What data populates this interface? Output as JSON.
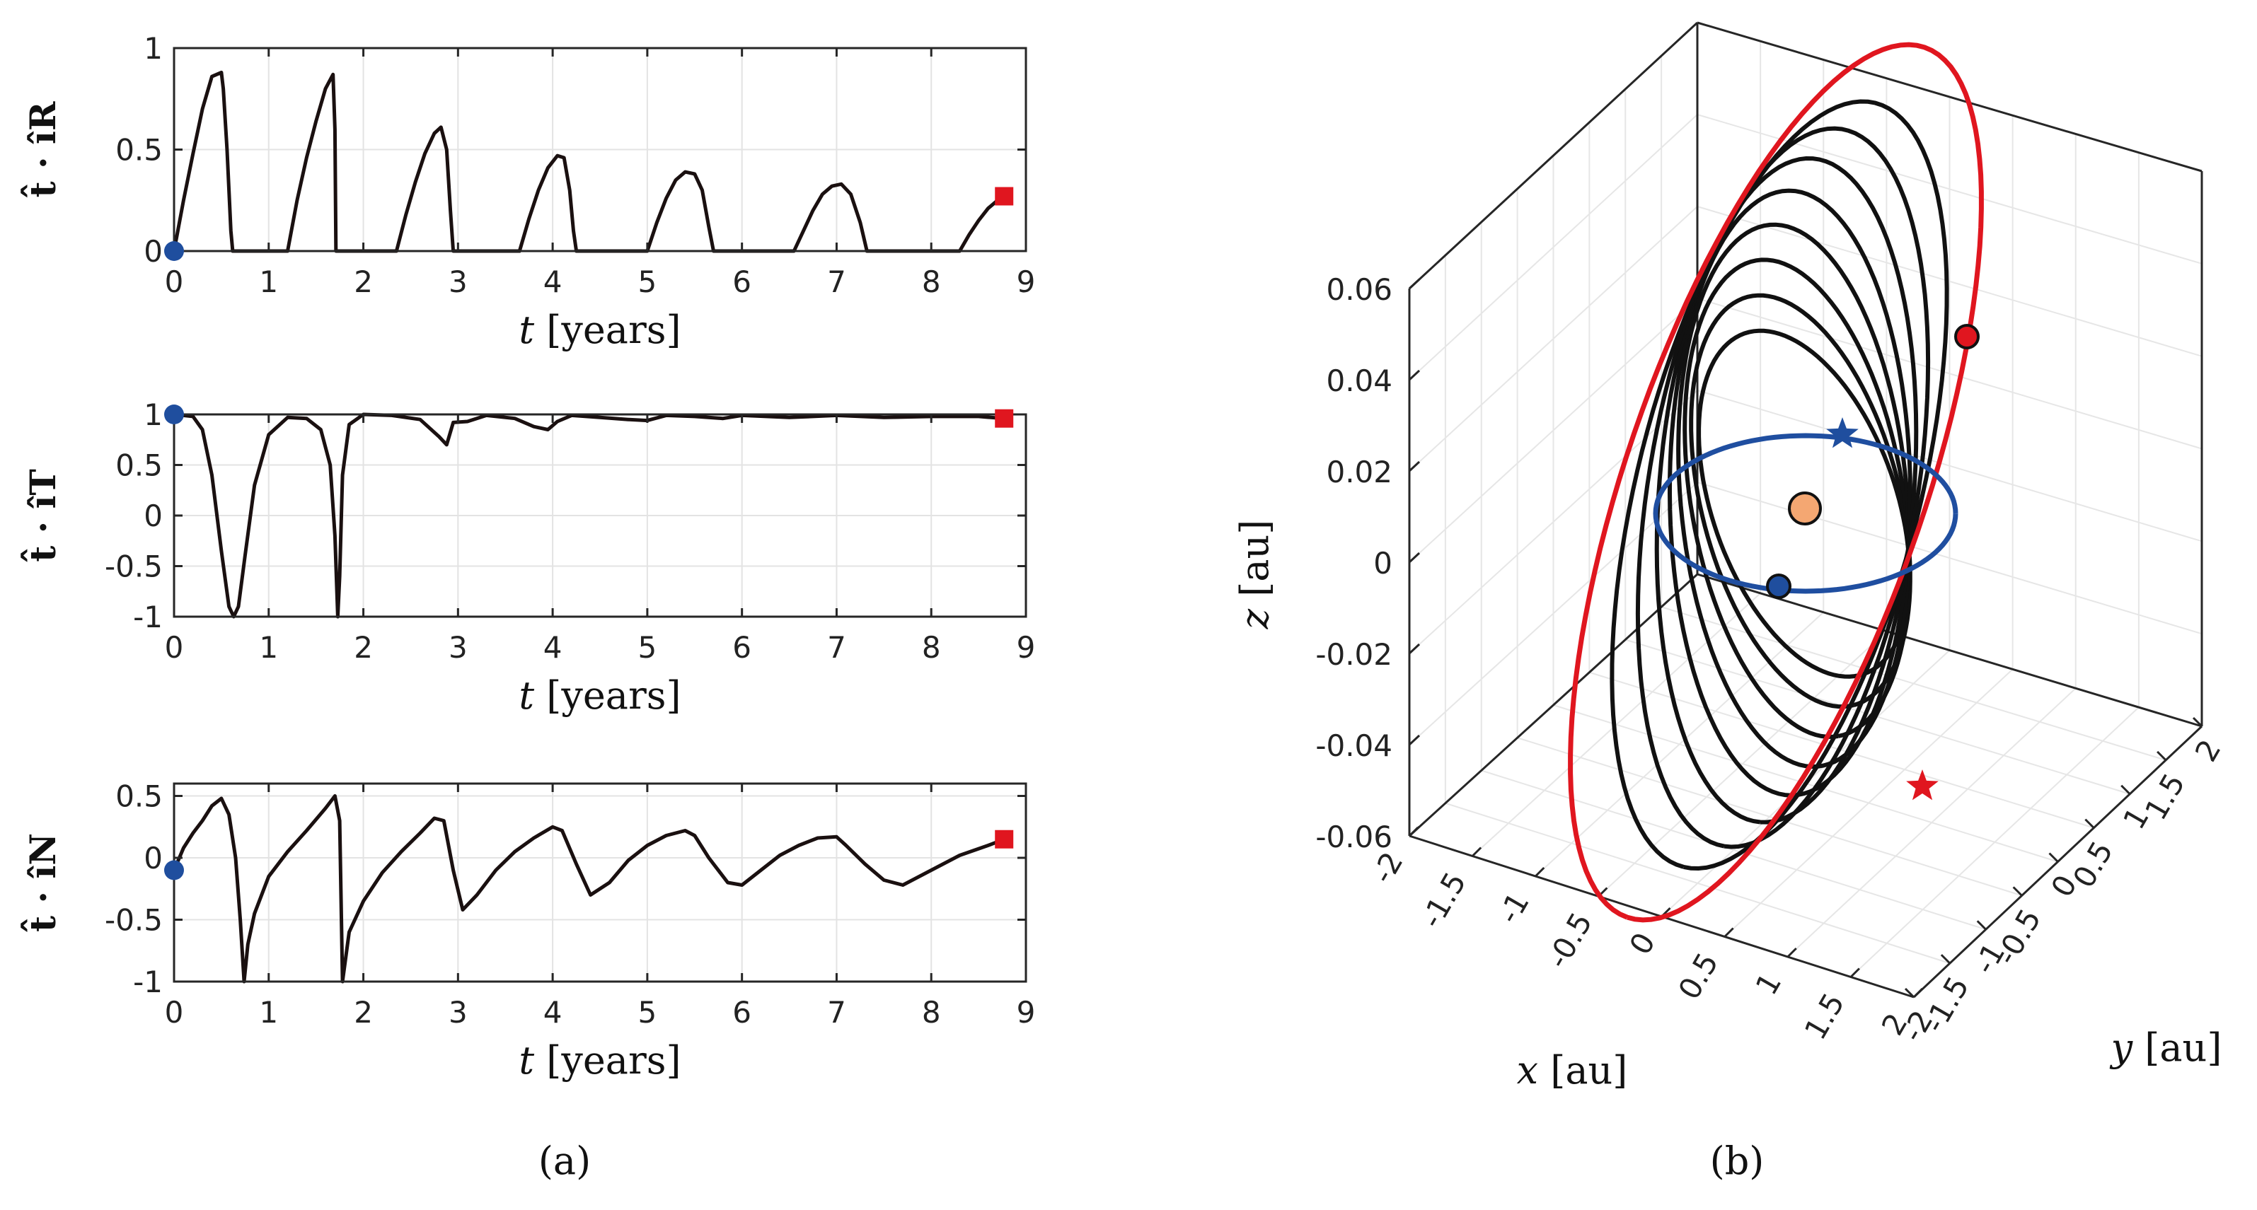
{
  "chart_data": [
    {
      "type": "line",
      "panel": "a-top",
      "ylabel": "t̂ · îR",
      "xlabel_var": "t",
      "xlabel_unit": "[years]",
      "xlim": [
        0,
        9
      ],
      "ylim": [
        0,
        1
      ],
      "xticks": [
        "0",
        "1",
        "2",
        "3",
        "4",
        "5",
        "6",
        "7",
        "8",
        "9"
      ],
      "yticks": [
        {
          "v": 0,
          "t": "0"
        },
        {
          "v": 0.5,
          "t": "0.5"
        },
        {
          "v": 1,
          "t": "1"
        }
      ],
      "series": [
        {
          "name": "t·iR",
          "x": [
            0,
            0.1,
            0.2,
            0.3,
            0.4,
            0.5,
            0.52,
            0.56,
            0.6,
            0.62,
            1.2,
            1.3,
            1.4,
            1.5,
            1.6,
            1.68,
            1.7,
            1.71,
            2.35,
            2.45,
            2.55,
            2.65,
            2.75,
            2.82,
            2.88,
            2.92,
            2.95,
            3.65,
            3.75,
            3.85,
            3.95,
            4.05,
            4.12,
            4.18,
            4.22,
            4.25,
            5.0,
            5.1,
            5.2,
            5.3,
            5.4,
            5.5,
            5.58,
            5.65,
            5.7,
            6.55,
            6.65,
            6.75,
            6.85,
            6.95,
            7.05,
            7.15,
            7.25,
            7.32,
            8.3,
            8.4,
            8.5,
            8.6,
            8.7,
            8.77
          ],
          "y": [
            0,
            0.25,
            0.48,
            0.7,
            0.86,
            0.88,
            0.8,
            0.5,
            0.1,
            0,
            0,
            0.25,
            0.46,
            0.64,
            0.8,
            0.87,
            0.6,
            0,
            0,
            0.18,
            0.34,
            0.48,
            0.58,
            0.61,
            0.5,
            0.2,
            0,
            0,
            0.16,
            0.3,
            0.41,
            0.47,
            0.46,
            0.3,
            0.1,
            0,
            0,
            0.14,
            0.26,
            0.35,
            0.39,
            0.38,
            0.3,
            0.12,
            0,
            0,
            0.1,
            0.2,
            0.28,
            0.32,
            0.33,
            0.28,
            0.14,
            0,
            0,
            0.08,
            0.15,
            0.21,
            0.25,
            0.27
          ]
        }
      ],
      "markers": [
        {
          "shape": "circle",
          "color": "#1f4e9e",
          "x": 0,
          "y": 0
        },
        {
          "shape": "square",
          "color": "#e0161f",
          "x": 8.77,
          "y": 0.27
        }
      ]
    },
    {
      "type": "line",
      "panel": "a-middle",
      "ylabel": "t̂ · îT",
      "xlabel_var": "t",
      "xlabel_unit": "[years]",
      "xlim": [
        0,
        9
      ],
      "ylim": [
        -1,
        1
      ],
      "xticks": [
        "0",
        "1",
        "2",
        "3",
        "4",
        "5",
        "6",
        "7",
        "8",
        "9"
      ],
      "yticks": [
        {
          "v": -1,
          "t": "-1"
        },
        {
          "v": -0.5,
          "t": "-0.5"
        },
        {
          "v": 0,
          "t": "0"
        },
        {
          "v": 0.5,
          "t": "0.5"
        },
        {
          "v": 1,
          "t": "1"
        }
      ],
      "series": [
        {
          "name": "t·iT",
          "x": [
            0,
            0.2,
            0.3,
            0.4,
            0.5,
            0.58,
            0.63,
            0.68,
            0.75,
            0.85,
            1.0,
            1.2,
            1.4,
            1.55,
            1.65,
            1.7,
            1.73,
            1.75,
            1.78,
            1.85,
            2.0,
            2.3,
            2.6,
            2.8,
            2.88,
            2.95,
            3.1,
            3.3,
            3.6,
            3.8,
            3.95,
            4.05,
            4.2,
            4.5,
            4.8,
            5.0,
            5.2,
            5.5,
            5.8,
            6.0,
            6.5,
            7.0,
            7.5,
            8.0,
            8.5,
            8.77
          ],
          "y": [
            1,
            0.98,
            0.85,
            0.4,
            -0.35,
            -0.9,
            -1,
            -0.9,
            -0.4,
            0.3,
            0.8,
            0.97,
            0.96,
            0.85,
            0.5,
            -0.2,
            -1,
            -0.6,
            0.4,
            0.9,
            1,
            0.99,
            0.95,
            0.78,
            0.7,
            0.92,
            0.93,
            0.99,
            0.96,
            0.88,
            0.85,
            0.93,
            0.99,
            0.97,
            0.95,
            0.94,
            0.99,
            0.98,
            0.96,
            0.99,
            0.97,
            0.99,
            0.97,
            0.98,
            0.98,
            0.96
          ]
        }
      ],
      "markers": [
        {
          "shape": "circle",
          "color": "#1f4e9e",
          "x": 0,
          "y": 1
        },
        {
          "shape": "square",
          "color": "#e0161f",
          "x": 8.77,
          "y": 0.96
        }
      ]
    },
    {
      "type": "line",
      "panel": "a-bottom",
      "ylabel": "t̂ · îN",
      "xlabel_var": "t",
      "xlabel_unit": "[years]",
      "xlim": [
        0,
        9
      ],
      "ylim": [
        -1,
        0.6
      ],
      "xticks": [
        "0",
        "1",
        "2",
        "3",
        "4",
        "5",
        "6",
        "7",
        "8",
        "9"
      ],
      "yticks": [
        {
          "v": -1,
          "t": "-1"
        },
        {
          "v": -0.5,
          "t": "-0.5"
        },
        {
          "v": 0,
          "t": "0"
        },
        {
          "v": 0.5,
          "t": "0.5"
        }
      ],
      "series": [
        {
          "name": "t·iN",
          "x": [
            0,
            0.1,
            0.2,
            0.3,
            0.4,
            0.5,
            0.58,
            0.65,
            0.7,
            0.74,
            0.78,
            0.85,
            1.0,
            1.2,
            1.4,
            1.6,
            1.7,
            1.75,
            1.78,
            1.85,
            2.0,
            2.2,
            2.4,
            2.6,
            2.75,
            2.85,
            2.95,
            3.05,
            3.2,
            3.4,
            3.6,
            3.8,
            4.0,
            4.1,
            4.25,
            4.4,
            4.6,
            4.8,
            5.0,
            5.2,
            5.4,
            5.5,
            5.65,
            5.85,
            6.0,
            6.2,
            6.4,
            6.6,
            6.8,
            7.0,
            7.1,
            7.3,
            7.5,
            7.7,
            8.0,
            8.3,
            8.6,
            8.77
          ],
          "y": [
            -0.1,
            0.08,
            0.2,
            0.3,
            0.42,
            0.48,
            0.35,
            0.0,
            -0.5,
            -1.0,
            -0.7,
            -0.45,
            -0.15,
            0.05,
            0.22,
            0.4,
            0.5,
            0.3,
            -1.0,
            -0.6,
            -0.35,
            -0.12,
            0.05,
            0.2,
            0.32,
            0.3,
            -0.1,
            -0.42,
            -0.3,
            -0.1,
            0.05,
            0.16,
            0.25,
            0.22,
            -0.05,
            -0.3,
            -0.2,
            -0.02,
            0.1,
            0.18,
            0.22,
            0.18,
            0.0,
            -0.2,
            -0.22,
            -0.1,
            0.02,
            0.1,
            0.16,
            0.17,
            0.1,
            -0.05,
            -0.18,
            -0.22,
            -0.1,
            0.02,
            0.1,
            0.15
          ]
        }
      ],
      "markers": [
        {
          "shape": "circle",
          "color": "#1f4e9e",
          "x": 0,
          "y": -0.1
        },
        {
          "shape": "square",
          "color": "#e0161f",
          "x": 8.77,
          "y": 0.15
        }
      ]
    },
    {
      "type": "line3d",
      "panel": "b",
      "xlabel_var": "x",
      "ylabel_var": "y",
      "zlabel_var": "z",
      "unit": "[au]",
      "xlim": [
        -2,
        2
      ],
      "ylim": [
        -2,
        2
      ],
      "zlim": [
        -0.06,
        0.06
      ],
      "xticks": [
        "-2",
        "-1.5",
        "-1",
        "-0.5",
        "0",
        "0.5",
        "1",
        "1.5",
        "2"
      ],
      "yticks": [
        "2",
        "1.5",
        "1",
        "0.5",
        "0",
        "-0.5",
        "-1",
        "-1.5",
        "-2"
      ],
      "zticks": [
        "0.06",
        "0.04",
        "0.02",
        "0",
        "-0.02",
        "-0.04",
        "-0.06"
      ],
      "series": [
        {
          "name": "initial orbit",
          "color": "#1f4ea0",
          "a": 1.0,
          "zamp": 0.0
        },
        {
          "name": "transfer spiral",
          "color": "#111111",
          "revolutions": 8
        },
        {
          "name": "final orbit",
          "color": "#e0161f",
          "a": 1.0,
          "zamp": 0.055
        }
      ],
      "markers": [
        {
          "name": "sun",
          "shape": "circle",
          "color": "#f4a772"
        },
        {
          "name": "start",
          "shape": "circle",
          "color": "#1f4e9e"
        },
        {
          "name": "end",
          "shape": "circle",
          "color": "#e0161f"
        },
        {
          "name": "initial star",
          "shape": "star",
          "color": "#1f4e9e"
        },
        {
          "name": "final star",
          "shape": "star",
          "color": "#e0161f"
        }
      ]
    }
  ],
  "captions": {
    "a": "(a)",
    "b": "(b)"
  }
}
